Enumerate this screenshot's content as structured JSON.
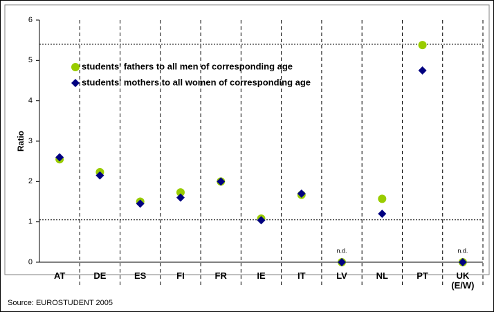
{
  "chart_data": {
    "type": "scatter",
    "y_label": "Ratio",
    "source": "Source: EUROSTUDENT 2005",
    "categories": [
      "AT",
      "DE",
      "ES",
      "FI",
      "FR",
      "IE",
      "IT",
      "LV",
      "NL",
      "PT",
      "UK (E/W)"
    ],
    "series": [
      {
        "name": "students' fathers to all men of corresponding age",
        "color": "#99cc00",
        "marker": "circle",
        "values": [
          2.55,
          2.23,
          1.5,
          1.73,
          2.0,
          1.08,
          1.67,
          0,
          1.57,
          5.38,
          0
        ]
      },
      {
        "name": "students' mothers to all women of corresponding age",
        "color": "#000080",
        "marker": "diamond",
        "values": [
          2.6,
          2.15,
          1.45,
          1.6,
          2.0,
          1.04,
          1.7,
          0,
          1.2,
          4.75,
          0
        ]
      }
    ],
    "annotations": [
      {
        "text": "n.d.",
        "category": "LV"
      },
      {
        "text": "n.d.",
        "category": "UK (E/W)"
      }
    ],
    "reference_lines": [
      1.05,
      5.4
    ],
    "ylim": [
      0,
      6
    ],
    "yticks": [
      0,
      1,
      2,
      3,
      4,
      5,
      6
    ]
  }
}
